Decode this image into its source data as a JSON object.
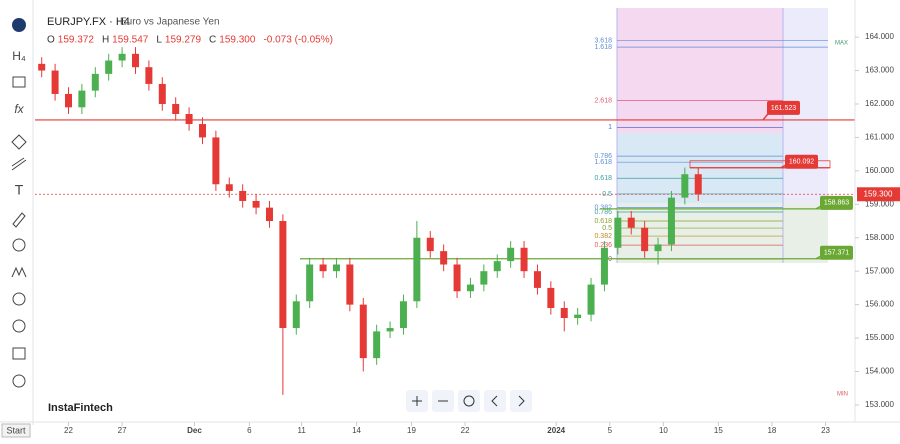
{
  "chart_data": {
    "type": "candlestick",
    "symbol": "EURJPY.FX · H4",
    "description": "Euro vs Japanese Yen",
    "ohlc_header": {
      "o_label": "O",
      "o": "159.372",
      "h_label": "H",
      "h": "159.547",
      "l_label": "L",
      "l": "159.279",
      "c_label": "C",
      "c": "159.300",
      "change": "-0.073 (-0.05%)"
    },
    "brand": "InstaFintech",
    "start_label": "Start",
    "up_color": "#4caf50",
    "down_color": "#e53935",
    "x": [
      0.5,
      1.5,
      2.5,
      3.5,
      4.5,
      5.5,
      6.5,
      7.5,
      8.5,
      9.5,
      10.5,
      11.5,
      12.5,
      13.5,
      14.5,
      15.5,
      16.5,
      17.5,
      18.5,
      19.5,
      20.5,
      21.5,
      22.5,
      23.5,
      24.5,
      25.5,
      26.5,
      27.5,
      28.5,
      29.5,
      30.5,
      31.5,
      32.5,
      33.5,
      34.5,
      35.5,
      36.5,
      37.5,
      38.5,
      39.5,
      40.5,
      41.5,
      42.5,
      43.5,
      44.5,
      45.5,
      46.5,
      47.5,
      48.5,
      49.5
    ],
    "open": [
      163.2,
      163.0,
      162.3,
      161.9,
      162.4,
      162.9,
      163.3,
      163.5,
      163.1,
      162.6,
      162.0,
      161.7,
      161.4,
      161.0,
      159.6,
      159.4,
      159.1,
      158.9,
      158.5,
      155.3,
      156.1,
      157.2,
      157.0,
      157.2,
      156.0,
      154.4,
      155.2,
      155.3,
      156.1,
      158.0,
      157.6,
      157.2,
      156.4,
      156.6,
      157.0,
      157.3,
      157.7,
      157.0,
      156.5,
      155.9,
      155.6,
      155.7,
      156.6,
      157.7,
      158.6,
      158.3,
      157.6,
      157.8,
      159.2,
      159.9
    ],
    "high": [
      163.4,
      163.2,
      162.5,
      162.6,
      163.1,
      163.5,
      163.7,
      163.7,
      163.3,
      162.8,
      162.2,
      161.9,
      161.6,
      161.2,
      159.8,
      159.6,
      159.3,
      159.1,
      158.7,
      156.3,
      157.4,
      157.4,
      157.4,
      157.4,
      156.2,
      155.4,
      155.5,
      156.3,
      158.5,
      158.2,
      157.8,
      157.4,
      156.8,
      157.2,
      157.5,
      157.9,
      157.9,
      157.2,
      156.7,
      156.1,
      155.9,
      156.8,
      157.9,
      158.8,
      158.8,
      158.5,
      158.0,
      159.4,
      160.1,
      160.1
    ],
    "low": [
      162.8,
      162.1,
      161.7,
      161.7,
      162.2,
      162.7,
      163.1,
      162.9,
      162.4,
      161.8,
      161.5,
      161.2,
      160.8,
      159.4,
      159.2,
      158.9,
      158.7,
      158.3,
      153.3,
      155.1,
      155.9,
      156.8,
      156.8,
      155.8,
      154.0,
      154.2,
      155.0,
      155.1,
      155.9,
      157.4,
      157.0,
      156.2,
      156.2,
      156.4,
      156.8,
      157.1,
      156.8,
      156.3,
      155.7,
      155.2,
      155.4,
      155.5,
      156.4,
      157.5,
      158.1,
      157.4,
      157.2,
      157.6,
      159.0,
      159.1
    ],
    "close": [
      163.0,
      162.3,
      161.9,
      162.4,
      162.9,
      163.3,
      163.5,
      163.1,
      162.6,
      162.0,
      161.7,
      161.4,
      161.0,
      159.6,
      159.4,
      159.1,
      158.9,
      158.5,
      155.3,
      156.1,
      157.2,
      157.0,
      157.2,
      156.0,
      154.4,
      155.2,
      155.3,
      156.1,
      158.0,
      157.6,
      157.2,
      156.4,
      156.6,
      157.0,
      157.3,
      157.7,
      157.0,
      156.5,
      155.9,
      155.6,
      155.7,
      156.6,
      157.7,
      158.6,
      158.3,
      157.6,
      157.8,
      159.2,
      159.9,
      159.3
    ],
    "xlim": [
      0,
      61.2
    ],
    "xticks": [
      {
        "value": 2.5,
        "label": "22"
      },
      {
        "value": 6.5,
        "label": "27"
      },
      {
        "value": 11.9,
        "label": "Dec"
      },
      {
        "value": 16,
        "label": "6"
      },
      {
        "value": 19.9,
        "label": "11"
      },
      {
        "value": 24,
        "label": "14"
      },
      {
        "value": 28.1,
        "label": "19"
      },
      {
        "value": 32.1,
        "label": "22"
      },
      {
        "value": 38.9,
        "label": "2024"
      },
      {
        "value": 42.9,
        "label": "5"
      },
      {
        "value": 46.9,
        "label": "10"
      },
      {
        "value": 51,
        "label": "15"
      },
      {
        "value": 55,
        "label": "18"
      },
      {
        "value": 59,
        "label": "23"
      }
    ],
    "ylim": [
      152.49,
      164.96
    ],
    "yticks": [
      {
        "value": 153,
        "label": "153.000"
      },
      {
        "value": 154,
        "label": "154.000"
      },
      {
        "value": 155,
        "label": "155.000"
      },
      {
        "value": 156,
        "label": "156.000"
      },
      {
        "value": 157,
        "label": "157.000"
      },
      {
        "value": 158,
        "label": "158.000"
      },
      {
        "value": 159,
        "label": "159.000"
      },
      {
        "value": 160,
        "label": "160.000"
      },
      {
        "value": 161,
        "label": "161.000"
      },
      {
        "value": 162,
        "label": "162.000"
      },
      {
        "value": 163,
        "label": "163.000"
      },
      {
        "value": 164,
        "label": "164.000"
      }
    ],
    "price_tags": [
      {
        "value": 161.523,
        "label": "161.523",
        "color": "#e53935"
      },
      {
        "value": 160.092,
        "label": "160.092",
        "color": "#e53935"
      },
      {
        "value": 158.863,
        "label": "158.863",
        "color": "#6aa833"
      },
      {
        "value": 157.371,
        "label": "157.371",
        "color": "#6aa833"
      }
    ],
    "current_price": {
      "value": 159.3,
      "label": "159.300",
      "color": "#e53935"
    },
    "fib_levels": [
      {
        "label": "3.618",
        "price": 163.9,
        "color": "#5b8fd6"
      },
      {
        "label": "1.618",
        "price": 163.7,
        "color": "#5b8fd6"
      },
      {
        "label": "2.618",
        "price": 162.1,
        "color": "#e05a7a"
      },
      {
        "label": "1",
        "price": 161.3,
        "color": "#5b6ed6"
      },
      {
        "label": "0.786",
        "price": 160.44,
        "color": "#5b8fd6"
      },
      {
        "label": "1.618",
        "price": 160.26,
        "color": "#5b8fd6"
      },
      {
        "label": "0.618",
        "price": 159.78,
        "color": "#3aa0a0"
      },
      {
        "label": "0.5",
        "price": 159.31,
        "color": "#3aa0a0"
      },
      {
        "label": "0.382",
        "price": 158.9,
        "color": "#5b8fd6"
      },
      {
        "label": "0.786",
        "price": 158.77,
        "color": "#3aa0a0"
      },
      {
        "label": "0.618",
        "price": 158.5,
        "color": "#8aa030"
      },
      {
        "label": "0.5",
        "price": 158.29,
        "color": "#8aa030"
      },
      {
        "label": "0.382",
        "price": 158.05,
        "color": "#c08a20"
      },
      {
        "label": "0.236",
        "price": 157.78,
        "color": "#e05a5a"
      },
      {
        "label": "0",
        "price": 157.36,
        "color": "#777777"
      }
    ],
    "max_label": "MAX",
    "min_label": "MIN"
  }
}
